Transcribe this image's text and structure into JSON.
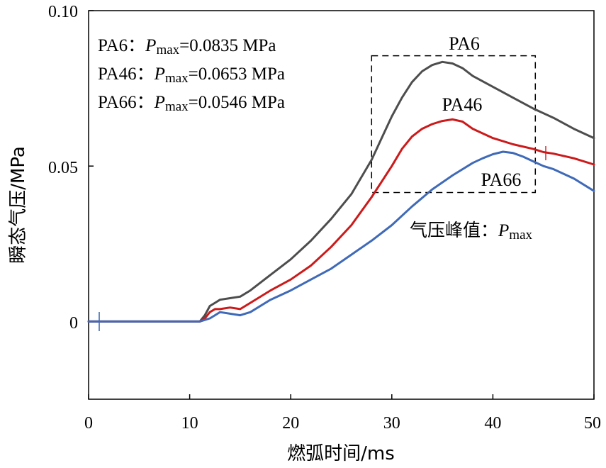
{
  "chart_data": {
    "type": "line",
    "title": "",
    "xlabel": "燃弧时间/ms",
    "ylabel": "瞬态气压/MPa",
    "xlim": [
      0,
      50
    ],
    "ylim": [
      -0.025,
      0.1
    ],
    "x_ticks": [
      0,
      10,
      20,
      30,
      40,
      50
    ],
    "x_tick_labels": [
      "0",
      "10",
      "20",
      "30",
      "40",
      "50"
    ],
    "y_ticks": [
      0,
      0.05,
      0.1
    ],
    "y_tick_labels": [
      "0",
      "0.05",
      "0.10"
    ],
    "grid": false,
    "series": [
      {
        "name": "PA6",
        "color": "#4d4d4d",
        "x": [
          0,
          1,
          2,
          5,
          8,
          11,
          11.5,
          12,
          12.5,
          13,
          14,
          15,
          16,
          18,
          20,
          22,
          24,
          26,
          28,
          29,
          30,
          31,
          32,
          33,
          34,
          35,
          36,
          37,
          38,
          40,
          42,
          44,
          46,
          48,
          50
        ],
        "y": [
          0,
          0,
          0,
          0,
          0,
          0,
          0.002,
          0.005,
          0.006,
          0.007,
          0.0075,
          0.008,
          0.01,
          0.015,
          0.02,
          0.026,
          0.033,
          0.041,
          0.052,
          0.059,
          0.066,
          0.072,
          0.077,
          0.0805,
          0.0825,
          0.0835,
          0.083,
          0.0815,
          0.079,
          0.0755,
          0.072,
          0.0685,
          0.0655,
          0.062,
          0.059
        ]
      },
      {
        "name": "PA46",
        "color": "#cc1a1a",
        "x": [
          0,
          1,
          2,
          5,
          8,
          11,
          11.5,
          12,
          12.5,
          13,
          14,
          15,
          16,
          18,
          20,
          22,
          24,
          26,
          28,
          30,
          31,
          32,
          33,
          34,
          35,
          36,
          37,
          38,
          40,
          42,
          44,
          45,
          46,
          48,
          50
        ],
        "y": [
          0,
          0,
          0,
          0,
          0,
          0,
          0.001,
          0.003,
          0.004,
          0.004,
          0.0045,
          0.004,
          0.006,
          0.01,
          0.0135,
          0.018,
          0.024,
          0.031,
          0.04,
          0.05,
          0.0555,
          0.0595,
          0.062,
          0.0635,
          0.0645,
          0.065,
          0.0643,
          0.062,
          0.059,
          0.057,
          0.0555,
          0.0545,
          0.054,
          0.0525,
          0.0505
        ]
      },
      {
        "name": "PA66",
        "color": "#3f6ab8",
        "x": [
          0,
          1,
          2,
          5,
          8,
          11,
          11.5,
          12,
          12.5,
          13,
          14,
          15,
          16,
          18,
          20,
          22,
          24,
          26,
          28,
          30,
          32,
          34,
          36,
          38,
          39,
          40,
          41,
          42,
          43,
          44,
          45,
          46,
          48,
          50
        ],
        "y": [
          0,
          0,
          0,
          0,
          0,
          0,
          0.0005,
          0.001,
          0.002,
          0.003,
          0.0025,
          0.002,
          0.003,
          0.007,
          0.01,
          0.0135,
          0.017,
          0.0215,
          0.026,
          0.031,
          0.037,
          0.0425,
          0.047,
          0.051,
          0.0525,
          0.0538,
          0.0546,
          0.0542,
          0.053,
          0.0515,
          0.05,
          0.049,
          0.046,
          0.042
        ]
      }
    ],
    "legend": [
      {
        "prefix": "PA6：",
        "symbol": "P",
        "subscript": "max",
        "value": "=0.0835 MPa"
      },
      {
        "prefix": "PA46：",
        "symbol": "P",
        "subscript": "max",
        "value": "=0.0653 MPa"
      },
      {
        "prefix": "PA66：",
        "symbol": "P",
        "subscript": "max",
        "value": "=0.0546 MPa"
      }
    ],
    "legend_position": "top-left",
    "series_labels": [
      "PA6",
      "PA46",
      "PA66"
    ],
    "annotation": {
      "text": "气压峰值：",
      "symbol": "P",
      "subscript": "max"
    },
    "highlight_box": {
      "x_range": [
        28,
        44.2
      ],
      "y_range": [
        0.0415,
        0.0855
      ],
      "style": "dashed"
    }
  }
}
